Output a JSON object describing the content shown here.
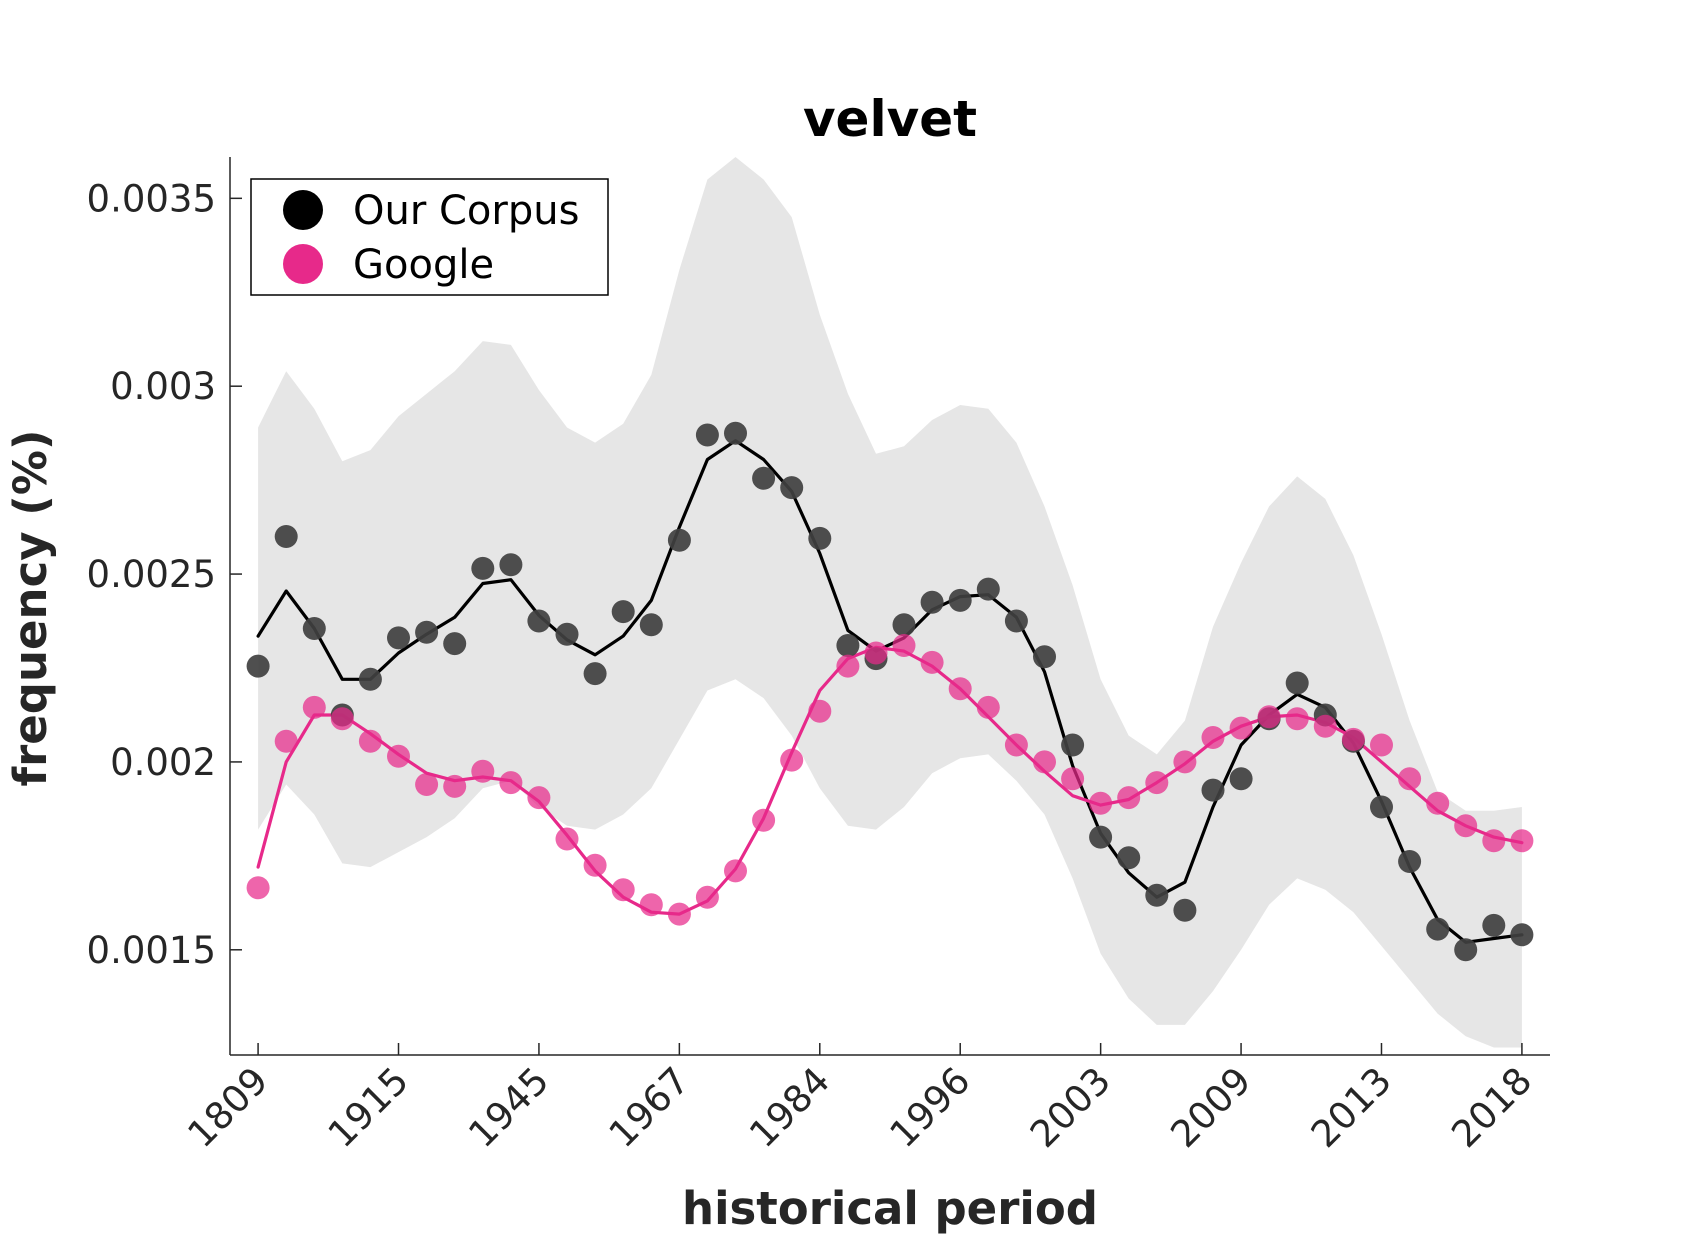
{
  "chart_data": {
    "type": "line",
    "title": "velvet",
    "xlabel": "historical period",
    "ylabel": "frequency (%)",
    "ylim": [
      0.00122,
      0.00361
    ],
    "yticks": [
      0.0015,
      0.002,
      0.0025,
      0.003,
      0.0035
    ],
    "ytick_labels": [
      "0.0015",
      "0.002",
      "0.0025",
      "0.003",
      "0.0035"
    ],
    "xtick_labels": [
      "1809",
      "1915",
      "1945",
      "1967",
      "1984",
      "1996",
      "2003",
      "2009",
      "2013",
      "2018"
    ],
    "xtick_positions": [
      0,
      5,
      10,
      15,
      20,
      25,
      30,
      35,
      40,
      45
    ],
    "xlim": [
      -1,
      46
    ],
    "legend": {
      "placement": "top-left",
      "entries": [
        "Our Corpus",
        "Google"
      ]
    },
    "grid": false,
    "series": [
      {
        "name": "Our Corpus",
        "color": "#000000",
        "marker_color": "#404040",
        "points": [
          0.002255,
          0.0026,
          0.002355,
          0.002125,
          0.00222,
          0.00233,
          0.002345,
          0.002315,
          0.002515,
          0.002525,
          0.002375,
          0.00234,
          0.002235,
          0.0024,
          0.002365,
          0.00259,
          0.00287,
          0.002875,
          0.002755,
          0.00273,
          0.002595,
          0.00231,
          0.002275,
          0.002365,
          0.002425,
          0.00243,
          0.00246,
          0.002375,
          0.00228,
          0.002045,
          0.0018,
          0.001745,
          0.001645,
          0.001605,
          0.001925,
          0.001955,
          0.002115,
          0.00221,
          0.002125,
          0.002055,
          0.00188,
          0.001735,
          0.001555,
          0.0015,
          0.001565,
          0.00154
        ],
        "smooth": [
          0.002335,
          0.002455,
          0.002355,
          0.00222,
          0.00222,
          0.00229,
          0.00234,
          0.002385,
          0.002475,
          0.002485,
          0.00239,
          0.002325,
          0.002285,
          0.002335,
          0.00243,
          0.002625,
          0.002805,
          0.002855,
          0.002805,
          0.00272,
          0.002555,
          0.00235,
          0.002295,
          0.00233,
          0.002405,
          0.00244,
          0.002445,
          0.002385,
          0.00224,
          0.00199,
          0.00181,
          0.001705,
          0.00164,
          0.00168,
          0.00188,
          0.002045,
          0.002125,
          0.00218,
          0.002145,
          0.00205,
          0.001895,
          0.00172,
          0.00158,
          0.00152,
          0.00153,
          0.00154
        ],
        "band_upper": [
          0.00289,
          0.00304,
          0.00294,
          0.0028,
          0.00283,
          0.00292,
          0.00298,
          0.00304,
          0.00312,
          0.00311,
          0.00299,
          0.00289,
          0.00285,
          0.0029,
          0.00303,
          0.00331,
          0.00355,
          0.00361,
          0.00355,
          0.00345,
          0.00319,
          0.00298,
          0.00282,
          0.00284,
          0.00291,
          0.00295,
          0.00294,
          0.00285,
          0.00268,
          0.00247,
          0.00222,
          0.00207,
          0.00202,
          0.00211,
          0.00236,
          0.00253,
          0.00268,
          0.00276,
          0.0027,
          0.00255,
          0.00234,
          0.00211,
          0.00192,
          0.00187,
          0.00187,
          0.00188
        ],
        "band_lower": [
          0.00182,
          0.00194,
          0.00186,
          0.00173,
          0.00172,
          0.00176,
          0.0018,
          0.00185,
          0.00193,
          0.00195,
          0.00188,
          0.00183,
          0.00182,
          0.00186,
          0.00193,
          0.00206,
          0.00219,
          0.00222,
          0.00217,
          0.00207,
          0.00193,
          0.00183,
          0.00182,
          0.00188,
          0.00197,
          0.00201,
          0.00202,
          0.00195,
          0.00186,
          0.00169,
          0.00149,
          0.00137,
          0.0013,
          0.0013,
          0.00139,
          0.0015,
          0.00162,
          0.00169,
          0.00166,
          0.0016,
          0.00151,
          0.00142,
          0.00133,
          0.00127,
          0.00124,
          0.00124
        ]
      },
      {
        "name": "Google",
        "color": "#e7298a",
        "marker_color": "#e7298a",
        "points": [
          0.001665,
          0.002055,
          0.002145,
          0.002115,
          0.002055,
          0.002015,
          0.00194,
          0.001935,
          0.001975,
          0.001945,
          0.001905,
          0.001795,
          0.001725,
          0.00166,
          0.00162,
          0.001595,
          0.00164,
          0.00171,
          0.001845,
          0.002005,
          0.002135,
          0.002255,
          0.00229,
          0.00231,
          0.002265,
          0.002195,
          0.002145,
          0.002045,
          0.002,
          0.001955,
          0.00189,
          0.001905,
          0.001945,
          0.002,
          0.002065,
          0.00209,
          0.00212,
          0.002115,
          0.002095,
          0.00206,
          0.002045,
          0.001955,
          0.00189,
          0.00183,
          0.00179,
          0.00179
        ],
        "smooth": [
          0.00172,
          0.002,
          0.002125,
          0.002125,
          0.002075,
          0.00202,
          0.00197,
          0.00195,
          0.00196,
          0.00195,
          0.001895,
          0.001805,
          0.00171,
          0.00164,
          0.0016,
          0.001595,
          0.00163,
          0.001715,
          0.00185,
          0.002025,
          0.00219,
          0.002275,
          0.002305,
          0.002295,
          0.002255,
          0.002195,
          0.00212,
          0.002045,
          0.001975,
          0.00191,
          0.001885,
          0.0019,
          0.001945,
          0.001995,
          0.002055,
          0.002095,
          0.00212,
          0.002125,
          0.002105,
          0.002065,
          0.002,
          0.001935,
          0.00187,
          0.00183,
          0.0018,
          0.001785
        ]
      }
    ]
  }
}
